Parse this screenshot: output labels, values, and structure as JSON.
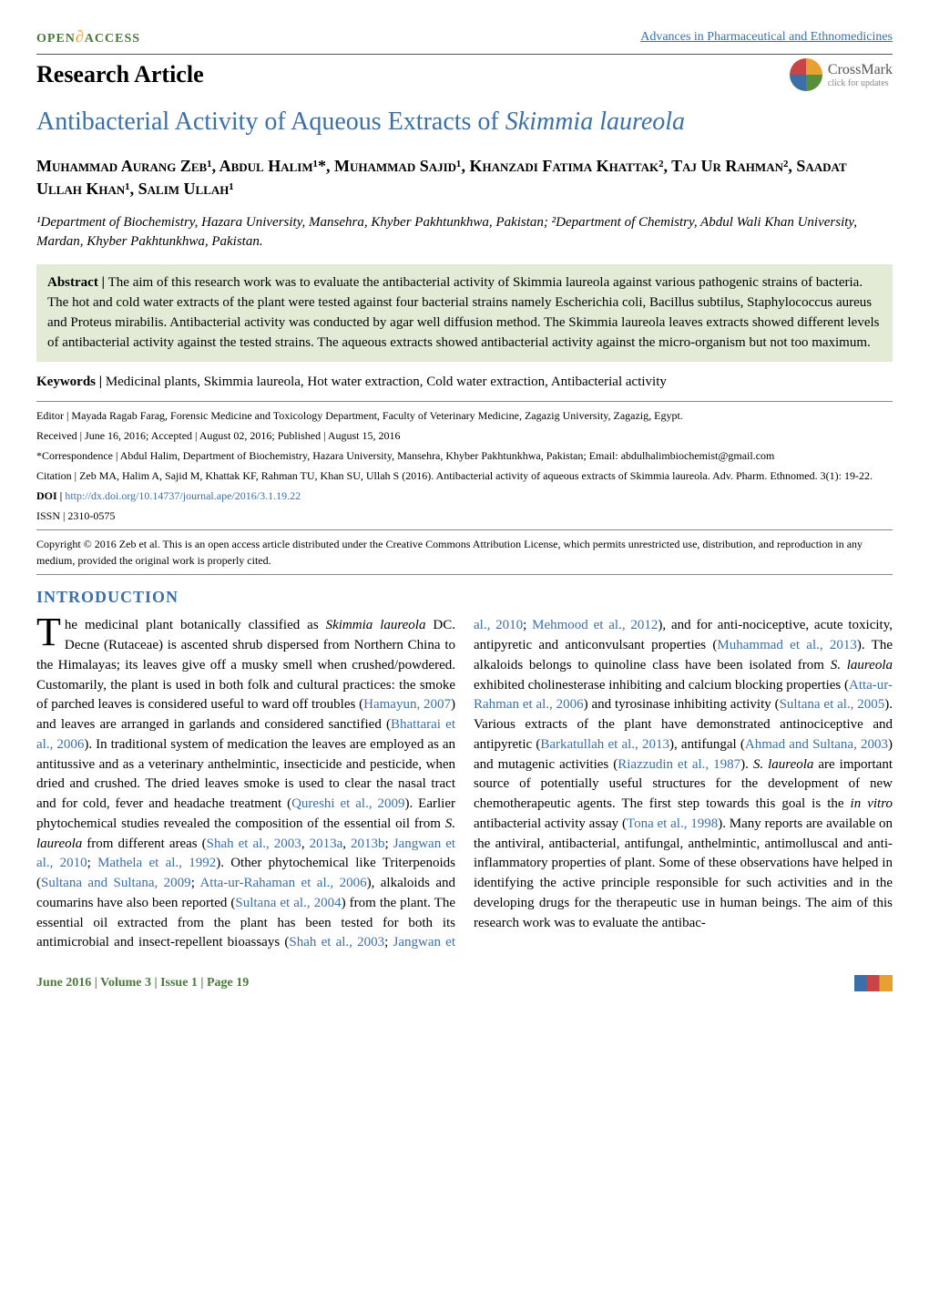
{
  "header": {
    "open_access_prefix": "OPEN",
    "open_access_suffix": "ACCESS",
    "journal": "Advances in Pharmaceutical and Ethnomedicines",
    "article_type": "Research Article",
    "crossmark": "CrossMark",
    "crossmark_sub": "click for updates"
  },
  "title_prefix": "Antibacterial Activity of Aqueous Extracts of ",
  "title_species": "Skimmia laureola",
  "authors": "Muhammad Aurang Zeb¹, Abdul Halim¹*, Muhammad Sajid¹, Khanzadi Fatima Khattak², Taj Ur Rahman², Saadat Ullah Khan¹, Salim Ullah¹",
  "affiliations": "¹Department of Biochemistry, Hazara University, Mansehra, Khyber Pakhtunkhwa, Pakistan; ²Department of Chemistry, Abdul Wali Khan University, Mardan, Khyber Pakhtunkhwa, Pakistan.",
  "abstract_label": "Abstract | ",
  "abstract": "The aim of this research work was to evaluate the antibacterial activity of Skimmia laureola against various pathogenic strains of bacteria. The hot and cold water extracts of the plant were tested against four bacterial strains namely Escherichia coli, Bacillus subtilus, Staphylococcus aureus and Proteus mirabilis. Antibacterial activity was conducted by agar well diffusion method. The Skimmia laureola leaves extracts showed different levels of antibacterial activity against the tested strains. The aqueous extracts showed antibacterial activity against the micro-organism but not too maximum.",
  "keywords_label": "Keywords | ",
  "keywords": "Medicinal plants, Skimmia laureola, Hot water extraction, Cold water extraction, Antibacterial activity",
  "meta": {
    "editor": "Editor | Mayada Ragab Farag,  Forensic Medicine and Toxicology Department, Faculty of Veterinary Medicine, Zagazig University, Zagazig, Egypt.",
    "dates": "Received | June 16, 2016; Accepted | August 02, 2016; Published | August 15, 2016",
    "correspondence": "*Correspondence | Abdul Halim, Department of Biochemistry, Hazara University, Mansehra, Khyber Pakhtunkhwa, Pakistan; Email: abdulhalimbiochemist@gmail.com",
    "citation": "Citation | Zeb MA, Halim A, Sajid M, Khattak KF, Rahman TU, Khan SU, Ullah S  (2016). Antibacterial activity of aqueous extracts of Skimmia laureola. Adv. Pharm. Ethnomed. 3(1): 19-22.",
    "doi_label": "DOI | ",
    "doi": "http://dx.doi.org/10.14737/journal.ape/2016/3.1.19.22",
    "issn": "ISSN | 2310-0575",
    "copyright": "Copyright © 2016 Zeb et al. This is an open access article distributed under the Creative Commons Attribution License, which permits unrestricted use, distribution, and reproduction in any medium, provided the original work is properly cited."
  },
  "section_intro": "INTRODUCTION",
  "body": {
    "dropcap": "T",
    "p1a": "he medicinal plant botanically classified as ",
    "p1_sp1": "Skimmia laureola",
    "p1b": " DC. Decne (Rutaceae) is ascented shrub dispersed from Northern China to the Himalayas; its leaves give off a musky smell when crushed/powdered. Customarily, the plant is used in both folk and cultural practices: the smoke of parched leaves is considered useful to ward off troubles (",
    "r1": "Hamayun, 2007",
    "p1c": ") and leaves are arranged in garlands and considered sanctified (",
    "r2": "Bhattarai et al., 2006",
    "p1d": "). In traditional system of medication the leaves are employed as an antitussive and as a veterinary anthelmintic, insecticide and pesticide, when dried and crushed. The dried leaves smoke is used to clear the nasal tract and for cold, fever and headache treatment (",
    "r3": "Qureshi et al., 2009",
    "p1e": "). Earlier phytochemical studies revealed the composition of the essential oil from ",
    "p1_sp2": "S. laureola",
    "p1f": " from different areas (",
    "r4": "Shah et al., 2003",
    "p1g": ", ",
    "r5": "2013a",
    "p1h": ", ",
    "r6": "2013b",
    "p1i": "; ",
    "r7": "Jangwan et al., 2010",
    "p1j": "; ",
    "r8": "Mathela et al., 1992",
    "p1k": "). Other phytochemical like Triterpenoids (",
    "r9": "Sultana and Sultana, 2009",
    "p1l": "; ",
    "r10": "Atta-ur-Rahaman et al., 2006",
    "p1m": "), alkaloids and coumarins have also been reported (",
    "r11": "Sultana et al., 2004",
    "p1n": ") from the plant. The essential oil extracted from the plant has been tested for both its antimicrobial and insect-repellent bioassays (",
    "r12": "Shah et al., 2003",
    "p1o": "; ",
    "r13": "Jangwan et al., 2010",
    "p1p": "; ",
    "r14": "Mehmood et al., 2012",
    "p1q": "), and for anti-nociceptive, acute toxicity, antipyretic and anticonvulsant properties (",
    "r15": "Muhammad et al., 2013",
    "p1r": "). The alkaloids belongs to quinoline class have been isolated from ",
    "p1_sp3": "S. laureola",
    "p1s": " exhibited cholinesterase inhibiting and calcium blocking properties (",
    "r16": "Atta-ur-Rahman et al., 2006",
    "p1t": ") and tyrosinase inhibiting activity (",
    "r17": "Sultana et al., 2005",
    "p1u": "). Various extracts of the plant have demonstrated antinociceptive and antipyretic (",
    "r18": "Barkatullah et al., 2013",
    "p1v": "), antifungal (",
    "r19": "Ahmad and Sultana, 2003",
    "p1w": ") and mutagenic activities (",
    "r20": "Riazzudin et al., 1987",
    "p1x": "). ",
    "p1_sp4": "S. laureola",
    "p1y": " are important source of potentially useful structures for the development of new chemotherapeutic agents. The first step towards this goal is the ",
    "p1_sp5": "in vitro",
    "p1z": " antibacterial activity assay (",
    "r21": "Tona et al., 1998",
    "p1aa": "). Many reports are available on the antiviral, antibacterial, antifungal, anthelmintic, antimolluscal and anti-inflammatory properties of plant. Some of these observations have helped in identifying the active principle responsible for such activities and in the developing drugs for the therapeutic use in human beings. The aim of this research work was to evaluate the antibac-"
  },
  "footer": {
    "left": "June 2016 | Volume 3 | Issue 1 | Page 19"
  }
}
